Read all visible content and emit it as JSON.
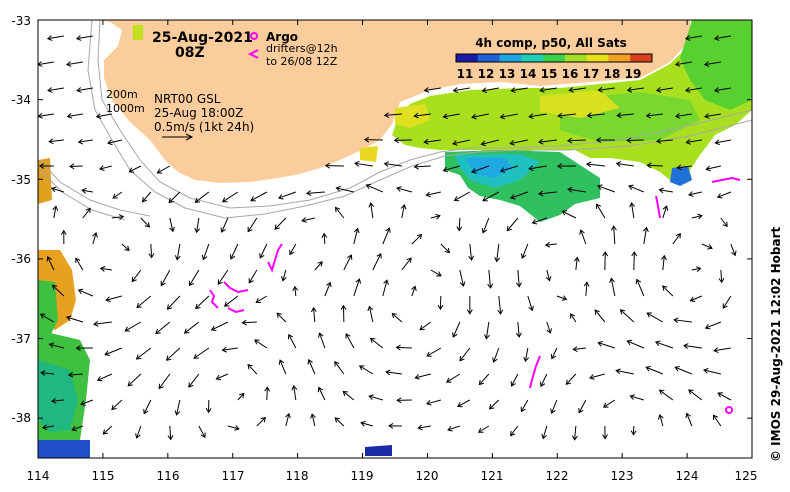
{
  "map": {
    "lon_range": [
      114,
      125
    ],
    "lat_range": [
      -38.5,
      -33
    ],
    "lon_ticks": [
      "114",
      "115",
      "116",
      "117",
      "118",
      "119",
      "120",
      "121",
      "122",
      "123",
      "124",
      "125"
    ],
    "lat_ticks": [
      "-33",
      "-34",
      "-35",
      "-36",
      "-37",
      "-38"
    ]
  },
  "header": {
    "date": "25-Aug-2021",
    "time": "08Z"
  },
  "legend_drifters": {
    "argo_label": "Argo",
    "drifters_label": "drifters@12h",
    "drifters_range": "to 26/08 12Z",
    "argo_color": "#ff00ff",
    "drifter_color": "#ff00ff"
  },
  "legend_currents": {
    "isobath_200": "200m",
    "isobath_1000": "1000m",
    "product": "NRT00 GSL",
    "timestamp": "25-Aug 18:00Z",
    "scale": "0.5m/s (1kt 24h)"
  },
  "colorbar": {
    "title": "4h comp, p50, All Sats",
    "tick_labels": [
      "11",
      "12",
      "13",
      "14",
      "15",
      "16",
      "17",
      "18",
      "19"
    ],
    "colors": [
      "#1a1aa6",
      "#1f5fd8",
      "#1fa6e0",
      "#1fd0b8",
      "#3ad24a",
      "#a0e020",
      "#e8e018",
      "#f0a020",
      "#d84020"
    ]
  },
  "credit": "©  IMOS 29-Aug-2021 12:02 Hobart",
  "colors": {
    "land": "#fccd9c",
    "ocean": "#ffffff",
    "isobath": "#a8a8a8",
    "arrow": "#000000"
  }
}
